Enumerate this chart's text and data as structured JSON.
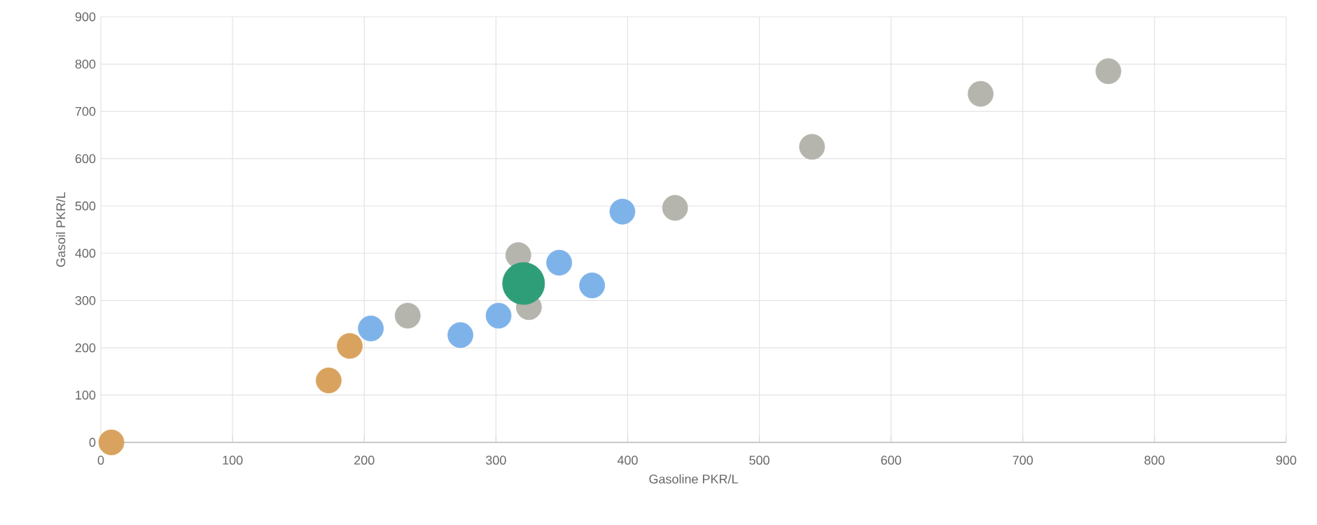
{
  "chart_data": {
    "type": "bubble",
    "xlabel": "Gasoline PKR/L",
    "ylabel": "Gasoil PKR/L",
    "xlim": [
      0,
      900
    ],
    "ylim": [
      0,
      900
    ],
    "xticks": [
      0,
      100,
      200,
      300,
      400,
      500,
      600,
      700,
      800,
      900
    ],
    "yticks": [
      0,
      100,
      200,
      300,
      400,
      500,
      600,
      700,
      800,
      900
    ],
    "grid": true,
    "marker": "circle",
    "series": [
      {
        "color": "#d9a35f",
        "x": [
          8,
          173,
          189
        ],
        "values": [
          0,
          131,
          204
        ],
        "sizes": [
          0.36,
          0.36,
          0.36
        ]
      },
      {
        "color": "#7eb3ea",
        "x": [
          205,
          273,
          302,
          348,
          373,
          396
        ],
        "values": [
          241,
          227,
          268,
          380,
          332,
          488
        ],
        "sizes": [
          0.36,
          0.36,
          0.36,
          0.36,
          0.36,
          0.36
        ]
      },
      {
        "color": "#b5b5ad",
        "x": [
          233,
          317,
          325,
          436,
          540,
          668,
          765
        ],
        "values": [
          268,
          396,
          286,
          496,
          625,
          737,
          785
        ],
        "sizes": [
          0.36,
          0.36,
          0.36,
          0.36,
          0.36,
          0.36,
          0.36
        ]
      },
      {
        "color": "#2e9e78",
        "x": [
          321
        ],
        "values": [
          336
        ],
        "sizes": [
          1
        ]
      }
    ]
  }
}
